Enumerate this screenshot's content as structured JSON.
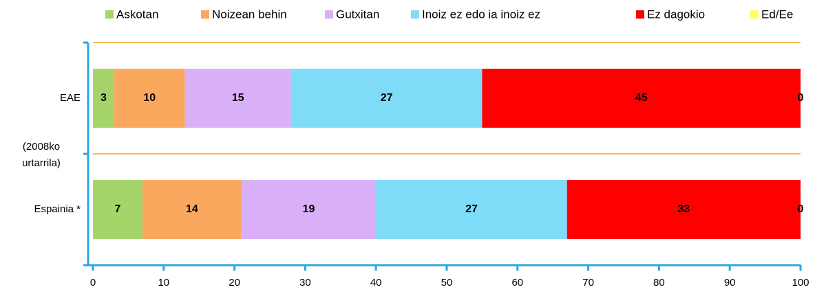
{
  "chart_data": {
    "type": "stacked_bar_horizontal",
    "categories": [
      "EAE",
      "Espainia *"
    ],
    "annotations": [
      "(2008ko urtarrila)"
    ],
    "series": [
      {
        "name": "Askotan",
        "color": "#a5d46a",
        "values": [
          3,
          7
        ]
      },
      {
        "name": "Noizean behin",
        "color": "#f9a85e",
        "values": [
          10,
          14
        ]
      },
      {
        "name": "Gutxitan",
        "color": "#d9b0f7",
        "values": [
          15,
          19
        ]
      },
      {
        "name": "Inoiz ez edo ia inoiz ez",
        "color": "#7fdcf8",
        "values": [
          27,
          27
        ]
      },
      {
        "name": "Ez dagokio",
        "color": "#ff0000",
        "values": [
          45,
          33
        ]
      },
      {
        "name": "Ed/Ee",
        "color": "#ffff66",
        "values": [
          0,
          0
        ]
      }
    ],
    "xlim": [
      0,
      100
    ],
    "xticks": [
      0,
      10,
      20,
      30,
      40,
      50,
      60,
      70,
      80,
      90,
      100
    ],
    "grid": true,
    "legend": "top"
  }
}
